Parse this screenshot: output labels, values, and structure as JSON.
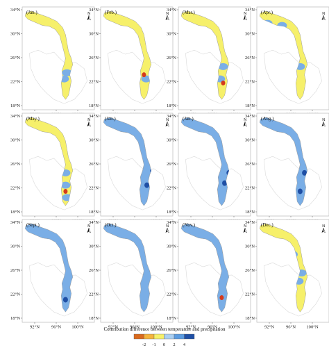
{
  "panels": [
    {
      "label": "(Jan.)",
      "base": "#f6f06a",
      "blue": [
        [
          0.62,
          0.64
        ],
        [
          0.58,
          0.7
        ]
      ],
      "dark": [],
      "red": []
    },
    {
      "label": "(Feb.)",
      "base": "#f6f06a",
      "blue": [
        [
          0.63,
          0.7
        ]
      ],
      "dark": [],
      "red": [
        [
          0.6,
          0.66
        ]
      ]
    },
    {
      "label": "(Mar.)",
      "base": "#f6f06a",
      "blue": [
        [
          0.2,
          0.22
        ],
        [
          0.62,
          0.58
        ],
        [
          0.58,
          0.7
        ]
      ],
      "dark": [],
      "red": [
        [
          0.62,
          0.74
        ]
      ]
    },
    {
      "label": "(Apr.)",
      "base": "#f6f06a",
      "blue": [
        [
          0.15,
          0.16
        ],
        [
          0.35,
          0.18
        ],
        [
          0.6,
          0.58
        ]
      ],
      "dark": [],
      "red": []
    },
    {
      "label": "(May.)",
      "base": "#f6f06a",
      "blue": [
        [
          0.15,
          0.3
        ],
        [
          0.6,
          0.58
        ],
        [
          0.6,
          0.7
        ],
        [
          0.62,
          0.82
        ]
      ],
      "dark": [
        [
          0.18,
          0.22
        ]
      ],
      "red": [
        [
          0.6,
          0.76
        ]
      ]
    },
    {
      "label": "(Jan.)",
      "base": "#7aaee6",
      "blue": [],
      "dark": [
        [
          0.72,
          0.56
        ],
        [
          0.64,
          0.7
        ]
      ],
      "red": []
    },
    {
      "label": "(Jan.)",
      "base": "#7aaee6",
      "blue": [],
      "dark": [
        [
          0.7,
          0.58
        ],
        [
          0.64,
          0.68
        ]
      ],
      "red": []
    },
    {
      "label": "(Aug.)",
      "base": "#7aaee6",
      "blue": [],
      "dark": [
        [
          0.2,
          0.2
        ],
        [
          0.66,
          0.58
        ],
        [
          0.6,
          0.76
        ]
      ],
      "red": []
    },
    {
      "label": "(Sept.)",
      "base": "#7aaee6",
      "blue": [],
      "dark": [
        [
          0.6,
          0.78
        ]
      ],
      "red": []
    },
    {
      "label": "(Oct.)",
      "base": "#7aaee6",
      "blue": [],
      "dark": [],
      "red": []
    },
    {
      "label": "(Nov.)",
      "base": "#7aaee6",
      "blue": [],
      "dark": [],
      "red": [
        [
          0.6,
          0.76
        ]
      ]
    },
    {
      "label": "(Dec.)",
      "base": "#f6f06a",
      "blue": [
        [
          0.28,
          0.22
        ],
        [
          0.5,
          0.34
        ],
        [
          0.62,
          0.52
        ],
        [
          0.58,
          0.6
        ]
      ],
      "dark": [],
      "red": []
    }
  ],
  "axes": {
    "y_ticks": [
      "34°N",
      "30°N",
      "26°N",
      "22°N",
      "18°N"
    ],
    "x_ticks": [
      "92°N",
      "96°N",
      "100°N"
    ]
  },
  "north_arrow": {
    "letter": "N",
    "icon": "north-arrow-icon"
  },
  "legend": {
    "title": "Contribution difference between temperature and precipitation",
    "ticks": [
      "-2",
      "-1",
      "0",
      "2",
      "4"
    ],
    "colors": [
      "#d96a1e",
      "#f5b43c",
      "#f6f06a",
      "#a9cff2",
      "#5a9be0",
      "#1f4fa5"
    ]
  },
  "colors": {
    "yellow": "#f6f06a",
    "blue": "#7aaee6",
    "dark_blue": "#1f4fa5",
    "red": "#d43a1c",
    "outline": "#9a9a9a",
    "frame": "#b8b8b8"
  }
}
